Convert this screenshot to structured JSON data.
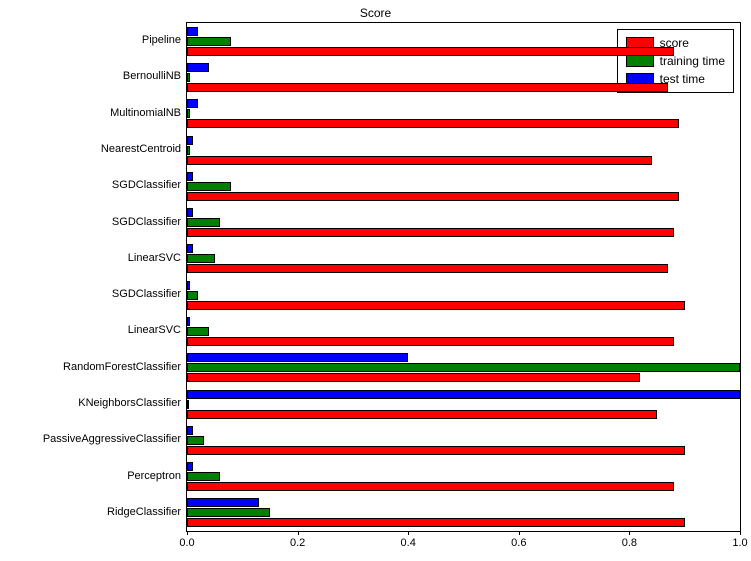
{
  "chart": {
    "type": "bar-horizontal-grouped",
    "title": "Score",
    "title_fontsize": 12,
    "background_color": "#ffffff",
    "plot_border_color": "#000000",
    "label_fontsize": 11,
    "bar_edge_color": "#000000",
    "xlim": [
      0.0,
      1.0
    ],
    "xtick_step": 0.2,
    "xticks": [
      "0.0",
      "0.2",
      "0.4",
      "0.6",
      "0.8",
      "1.0"
    ],
    "categories": [
      "Pipeline",
      "BernoulliNB",
      "MultinomialNB",
      "NearestCentroid",
      "SGDClassifier",
      "SGDClassifier",
      "LinearSVC",
      "SGDClassifier",
      "LinearSVC",
      "RandomForestClassifier",
      "KNeighborsClassifier",
      "PassiveAggressiveClassifier",
      "Perceptron",
      "RidgeClassifier"
    ],
    "series": [
      {
        "name": "score",
        "color": "#ff0000",
        "values": [
          0.88,
          0.87,
          0.89,
          0.84,
          0.89,
          0.88,
          0.87,
          0.9,
          0.88,
          0.82,
          0.85,
          0.9,
          0.88,
          0.9
        ]
      },
      {
        "name": "training time",
        "color": "#008000",
        "values": [
          0.08,
          0.005,
          0.005,
          0.005,
          0.08,
          0.06,
          0.05,
          0.02,
          0.04,
          1.0,
          0.004,
          0.03,
          0.06,
          0.15
        ]
      },
      {
        "name": "test time",
        "color": "#0000ff",
        "values": [
          0.02,
          0.04,
          0.02,
          0.01,
          0.01,
          0.01,
          0.01,
          0.005,
          0.005,
          0.4,
          1.0,
          0.01,
          0.01,
          0.13
        ]
      }
    ],
    "legend": {
      "position": "top-right",
      "items": [
        "score",
        "training time",
        "test time"
      ],
      "colors": [
        "#ff0000",
        "#008000",
        "#0000ff"
      ]
    }
  }
}
